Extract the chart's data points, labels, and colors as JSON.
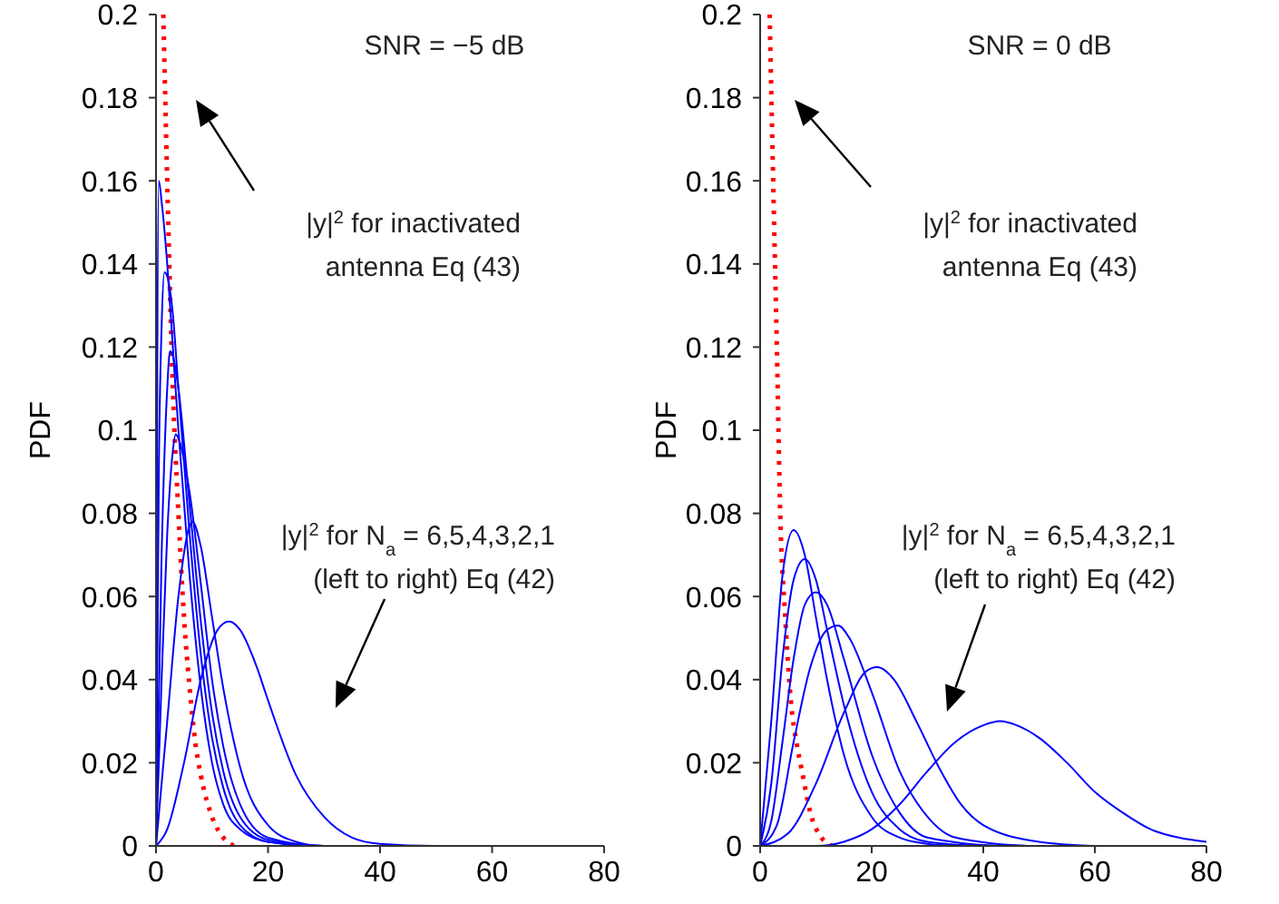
{
  "chart_data": [
    {
      "type": "line",
      "ylabel": "PDF",
      "xlim": [
        0,
        80
      ],
      "xticks": [
        0,
        20,
        40,
        60,
        80
      ],
      "ylim": [
        0,
        0.2
      ],
      "yticks": [
        0,
        0.02,
        0.04,
        0.06,
        0.08,
        0.1,
        0.12,
        0.14,
        0.16,
        0.18,
        0.2
      ],
      "grid": false,
      "legend": false,
      "marker": "none",
      "annotations": [
        "SNR = −5 dB",
        "|y|$^{2}$ for inactivated\nantenna Eq (43)",
        "|y|$^{2}$ for N$_{a}$ = 6,5,4,3,2,1\n(left to right) Eq (42)"
      ],
      "series": [
        {
          "color": "#ff0000",
          "line_style": "dotted",
          "x": [
            1.3,
            2,
            3,
            4,
            5,
            6,
            7,
            8,
            10,
            12,
            14
          ],
          "values": [
            0.2,
            0.16,
            0.11,
            0.08,
            0.055,
            0.038,
            0.025,
            0.017,
            0.007,
            0.002,
            0
          ]
        },
        {
          "color": "#0000ff",
          "line_style": "solid",
          "x": [
            0,
            0.5,
            1,
            2,
            3,
            4,
            6,
            8,
            10,
            12,
            15,
            20,
            30,
            80
          ],
          "values": [
            0.02,
            0.16,
            0.155,
            0.14,
            0.12,
            0.1,
            0.065,
            0.038,
            0.02,
            0.01,
            0.004,
            0.001,
            0,
            0
          ]
        },
        {
          "color": "#0000ff",
          "line_style": "solid",
          "x": [
            0,
            0.5,
            1,
            1.5,
            2,
            3,
            4,
            6,
            8,
            10,
            12,
            15,
            20,
            30,
            80
          ],
          "values": [
            0,
            0.09,
            0.125,
            0.138,
            0.137,
            0.128,
            0.11,
            0.075,
            0.046,
            0.026,
            0.014,
            0.005,
            0.001,
            0,
            0
          ]
        },
        {
          "color": "#0000ff",
          "line_style": "solid",
          "x": [
            0,
            1,
            2,
            2.5,
            3,
            4,
            6,
            8,
            10,
            12,
            15,
            20,
            30,
            80
          ],
          "values": [
            0,
            0.07,
            0.11,
            0.119,
            0.118,
            0.11,
            0.082,
            0.054,
            0.032,
            0.018,
            0.007,
            0.0015,
            0,
            0
          ]
        },
        {
          "color": "#0000ff",
          "line_style": "solid",
          "x": [
            0,
            1,
            2,
            3,
            3.5,
            4,
            6,
            8,
            10,
            12,
            15,
            20,
            30,
            80
          ],
          "values": [
            0,
            0.04,
            0.075,
            0.095,
            0.099,
            0.098,
            0.085,
            0.063,
            0.04,
            0.024,
            0.01,
            0.002,
            0,
            0
          ]
        },
        {
          "color": "#0000ff",
          "line_style": "solid",
          "x": [
            0,
            2,
            4,
            6,
            6.5,
            8,
            10,
            12,
            15,
            20,
            25,
            30,
            80
          ],
          "values": [
            0,
            0.03,
            0.06,
            0.077,
            0.078,
            0.072,
            0.055,
            0.038,
            0.019,
            0.005,
            0.001,
            0,
            0
          ]
        },
        {
          "color": "#0000ff",
          "line_style": "solid",
          "x": [
            0,
            2,
            5,
            8,
            11,
            13,
            15,
            18,
            20,
            25,
            30,
            35,
            40,
            50,
            80
          ],
          "values": [
            0,
            0.004,
            0.02,
            0.04,
            0.052,
            0.054,
            0.052,
            0.043,
            0.035,
            0.017,
            0.007,
            0.002,
            0.0005,
            0,
            0
          ]
        }
      ]
    },
    {
      "type": "line",
      "ylabel": "PDF",
      "xlim": [
        0,
        80
      ],
      "xticks": [
        0,
        20,
        40,
        60,
        80
      ],
      "ylim": [
        0,
        0.2
      ],
      "yticks": [
        0,
        0.02,
        0.04,
        0.06,
        0.08,
        0.1,
        0.12,
        0.14,
        0.16,
        0.18,
        0.2
      ],
      "grid": false,
      "legend": false,
      "marker": "none",
      "annotations": [
        "SNR = 0 dB",
        "|y|$^{2}$ for inactivated\nantenna Eq (43)",
        "|y|$^{2}$ for N$_{a}$ = 6,5,4,3,2,1\n(left to right) Eq (42)"
      ],
      "series": [
        {
          "color": "#ff0000",
          "line_style": "dotted",
          "x": [
            1.7,
            2.5,
            3,
            3.6,
            4.5,
            5.5,
            6.5,
            7.5,
            9,
            11,
            13
          ],
          "values": [
            0.2,
            0.15,
            0.12,
            0.08,
            0.055,
            0.035,
            0.025,
            0.018,
            0.008,
            0.002,
            0
          ]
        },
        {
          "color": "#0000ff",
          "line_style": "solid",
          "x": [
            0,
            2,
            4,
            6,
            8,
            10,
            12,
            15,
            20,
            25,
            30,
            35
          ],
          "values": [
            0,
            0.03,
            0.065,
            0.076,
            0.07,
            0.055,
            0.04,
            0.022,
            0.007,
            0.002,
            0.0005,
            0
          ]
        },
        {
          "color": "#0000ff",
          "line_style": "solid",
          "x": [
            0,
            2,
            4,
            6,
            8,
            10,
            12,
            15,
            20,
            25,
            30,
            40
          ],
          "values": [
            0,
            0.015,
            0.045,
            0.064,
            0.069,
            0.064,
            0.052,
            0.034,
            0.013,
            0.004,
            0.001,
            0
          ]
        },
        {
          "color": "#0000ff",
          "line_style": "solid",
          "x": [
            0,
            2,
            4,
            6,
            8,
            10,
            12,
            15,
            20,
            25,
            30,
            43
          ],
          "values": [
            0,
            0.006,
            0.025,
            0.045,
            0.058,
            0.061,
            0.058,
            0.045,
            0.022,
            0.008,
            0.002,
            0
          ]
        },
        {
          "color": "#0000ff",
          "line_style": "solid",
          "x": [
            0,
            3,
            6,
            9,
            12,
            14,
            16,
            20,
            25,
            30,
            35,
            48
          ],
          "values": [
            0,
            0.005,
            0.025,
            0.043,
            0.052,
            0.053,
            0.05,
            0.037,
            0.018,
            0.007,
            0.002,
            0
          ]
        },
        {
          "color": "#0000ff",
          "line_style": "solid",
          "x": [
            0,
            5,
            10,
            15,
            19,
            21,
            24,
            28,
            32,
            36,
            40,
            50,
            60
          ],
          "values": [
            0,
            0.003,
            0.015,
            0.032,
            0.042,
            0.043,
            0.04,
            0.03,
            0.019,
            0.01,
            0.005,
            0.001,
            0
          ]
        },
        {
          "color": "#0000ff",
          "line_style": "solid",
          "x": [
            0,
            10,
            15,
            20,
            25,
            30,
            35,
            40,
            43,
            46,
            50,
            55,
            60,
            65,
            70,
            75,
            80
          ],
          "values": [
            0,
            0,
            0.001,
            0.004,
            0.01,
            0.018,
            0.025,
            0.029,
            0.03,
            0.029,
            0.026,
            0.02,
            0.013,
            0.008,
            0.004,
            0.002,
            0.001
          ]
        }
      ]
    }
  ]
}
